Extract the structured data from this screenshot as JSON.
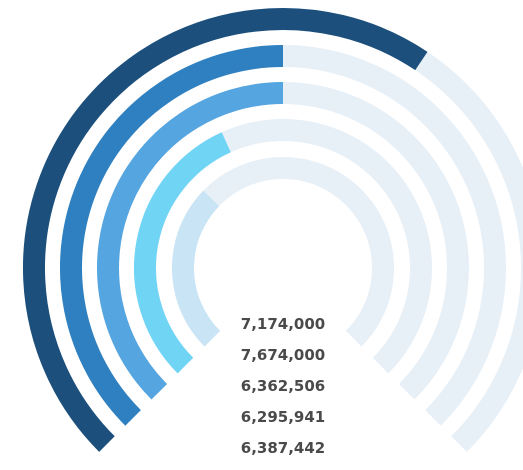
{
  "chart_data": {
    "type": "radial-bar",
    "title": "",
    "track_color": "#e7eff7",
    "series": [
      {
        "value_label": "7,174,000",
        "fraction": 0.625,
        "color": "#1c4f7c"
      },
      {
        "value_label": "7,674,000",
        "fraction": 0.5,
        "color": "#2f80c0"
      },
      {
        "value_label": "6,362,506",
        "fraction": 0.5,
        "color": "#55a5e0"
      },
      {
        "value_label": "6,295,941",
        "fraction": 0.41,
        "color": "#70d4f5"
      },
      {
        "value_label": "6,387,442",
        "fraction": 0.33,
        "color": "#c8e4f5"
      }
    ]
  }
}
